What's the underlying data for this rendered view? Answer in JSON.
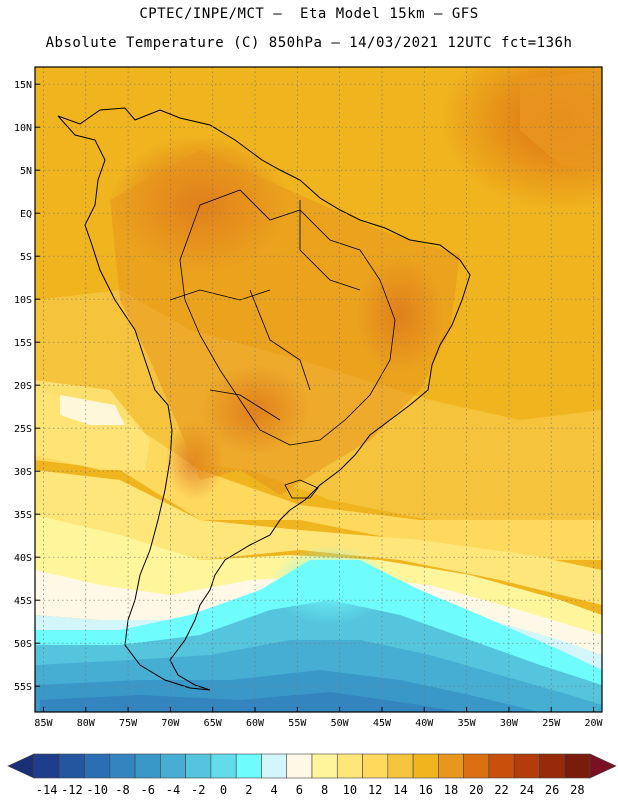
{
  "title_line1": "CPTEC/INPE/MCT –  Eta Model 15km – GFS",
  "title_line2": "Absolute Temperature (C) 850hPa – 14/03/2021 12UTC fct=136h",
  "map": {
    "lon_range": [
      -86,
      -19
    ],
    "lat_range": [
      -58,
      17
    ],
    "lat_ticks": [
      "15N",
      "10N",
      "5N",
      "EQ",
      "5S",
      "10S",
      "15S",
      "20S",
      "25S",
      "30S",
      "35S",
      "40S",
      "45S",
      "50S",
      "55S"
    ],
    "lon_ticks": [
      "85W",
      "80W",
      "75W",
      "70W",
      "65W",
      "60W",
      "55W",
      "50W",
      "45W",
      "40W",
      "35W",
      "30W",
      "25W",
      "20W"
    ],
    "grid": true
  },
  "colorbar": {
    "labels": [
      "-14",
      "-12",
      "-10",
      "-8",
      "-6",
      "-4",
      "-2",
      "0",
      "2",
      "4",
      "6",
      "8",
      "10",
      "12",
      "14",
      "16",
      "18",
      "20",
      "22",
      "24",
      "26",
      "28"
    ],
    "colors": [
      "#1e3c8c",
      "#2456a0",
      "#2b6eb4",
      "#3384bf",
      "#3a98c8",
      "#47aed3",
      "#55c4dd",
      "#62dcea",
      "#6ffcfc",
      "#d2f6fa",
      "#fff8e6",
      "#fff59a",
      "#ffe67a",
      "#ffd85e",
      "#f5c43c",
      "#f0b41e",
      "#e8961e",
      "#dc6e12",
      "#c8500c",
      "#b43c0a",
      "#962a0a",
      "#7a1c0c"
    ],
    "low_color": "#1a2f78",
    "high_color": "#7a1024"
  }
}
